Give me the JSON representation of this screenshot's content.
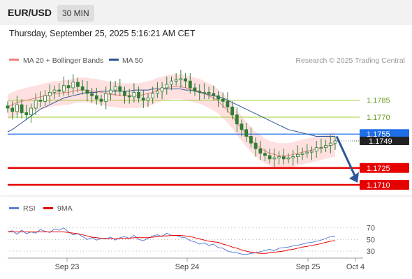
{
  "header": {
    "symbol": "EUR/USD",
    "timeframe": "30 MIN",
    "timestamp": "Thursday, September 25, 2025 5:16:21 AM CET"
  },
  "legend": {
    "bollinger": "MA 20 + Bollinger Bands",
    "ma50": "MA 50",
    "credit": "Research © 2025 Trading Central"
  },
  "rsi_legend": {
    "rsi": "RSI",
    "ma": "9MA"
  },
  "colors": {
    "bollinger": "#f08080",
    "ma50": "#2f5597",
    "band_fill": "#ffd6d6",
    "green_level": "#9acd32",
    "blue_level": "#1e6ee8",
    "red_level": "#e60000",
    "candle": "#2e7d32",
    "arrow": "#2f5597",
    "rsi_line": "#5b7fd6",
    "rsi_ma": "#e60000"
  },
  "chart_data": [
    {
      "type": "candlestick",
      "title": "EUR/USD",
      "timeframe": "30 MIN",
      "ylim": [
        1.1702,
        1.1812
      ],
      "x_ticks": [
        "Sep 23",
        "Sep 24",
        "Sep 25",
        "Oct 4"
      ],
      "levels": [
        {
          "value": 1.1785,
          "label": "1.1785",
          "kind": "resistance"
        },
        {
          "value": 1.177,
          "label": "1.1770",
          "kind": "resistance"
        },
        {
          "value": 1.1755,
          "label": "1.1755",
          "kind": "pivot"
        },
        {
          "value": 1.1725,
          "label": "1.1725",
          "kind": "support"
        },
        {
          "value": 1.171,
          "label": "1.1710",
          "kind": "support"
        }
      ],
      "last_price": {
        "value": 1.1749,
        "label": "1.1749"
      },
      "forecast": {
        "from": 1.1753,
        "to": 1.1712,
        "direction": "down"
      },
      "close_path": [
        1.1778,
        1.1775,
        1.1781,
        1.1774,
        1.1772,
        1.1778,
        1.1785,
        1.1784,
        1.1789,
        1.1792,
        1.1794,
        1.1793,
        1.1798,
        1.1796,
        1.1801,
        1.1797,
        1.1794,
        1.1791,
        1.1789,
        1.1786,
        1.1784,
        1.1791,
        1.1794,
        1.1797,
        1.1793,
        1.1789,
        1.1788,
        1.1792,
        1.1787,
        1.1785,
        1.1787,
        1.1791,
        1.1793,
        1.1796,
        1.1799,
        1.1802,
        1.1803,
        1.1804,
        1.1802,
        1.1796,
        1.1793,
        1.1792,
        1.1792,
        1.1791,
        1.1789,
        1.1786,
        1.1784,
        1.1779,
        1.1772,
        1.1764,
        1.1759,
        1.1753,
        1.1747,
        1.1742,
        1.1738,
        1.1736,
        1.1733,
        1.1734,
        1.1735,
        1.1733,
        1.1734,
        1.1735,
        1.1737,
        1.1738,
        1.1739,
        1.174,
        1.1743,
        1.1743,
        1.1745,
        1.1747,
        1.1749
      ],
      "ma20": [
        1.1779,
        1.1781,
        1.1783,
        1.1784,
        1.1785,
        1.1786,
        1.1787,
        1.1788,
        1.1789,
        1.179,
        1.1791,
        1.1791,
        1.1792,
        1.1792,
        1.1793,
        1.1794,
        1.1794,
        1.1794,
        1.1793,
        1.1793,
        1.1792,
        1.1791,
        1.179,
        1.179,
        1.1789,
        1.1789,
        1.1789,
        1.1789,
        1.1789,
        1.179,
        1.1791,
        1.1792,
        1.1794,
        1.1795,
        1.1796,
        1.1797,
        1.1797,
        1.1797,
        1.1796,
        1.1795,
        1.1794,
        1.1793,
        1.1791,
        1.1789,
        1.1787,
        1.1784,
        1.178,
        1.1776,
        1.1771,
        1.1765,
        1.176,
        1.1755,
        1.175,
        1.1746,
        1.1743,
        1.174,
        1.1738,
        1.1737,
        1.1736,
        1.1736,
        1.1736,
        1.1737,
        1.1738,
        1.1739,
        1.174,
        1.1741,
        1.1742,
        1.1743,
        1.1744,
        1.1745,
        1.1746
      ],
      "ma50": [
        1.1757,
        1.1759,
        1.1762,
        1.1765,
        1.1768,
        1.1771,
        1.1774,
        1.1777,
        1.1779,
        1.1781,
        1.1783,
        1.1785,
        1.1787,
        1.1788,
        1.1789,
        1.179,
        1.1791,
        1.1792,
        1.1792,
        1.1792,
        1.1793,
        1.1793,
        1.1793,
        1.1793,
        1.1793,
        1.1793,
        1.1793,
        1.1794,
        1.1794,
        1.1794,
        1.1794,
        1.1795,
        1.1795,
        1.1795,
        1.1795,
        1.1795,
        1.1795,
        1.1795,
        1.1794,
        1.1794,
        1.1793,
        1.1792,
        1.1791,
        1.179,
        1.1789,
        1.1788,
        1.1787,
        1.1785,
        1.1783,
        1.1781,
        1.1779,
        1.1777,
        1.1775,
        1.1773,
        1.1771,
        1.1769,
        1.1767,
        1.1765,
        1.1763,
        1.1761,
        1.1759,
        1.1758,
        1.1757,
        1.1756,
        1.1755,
        1.1754,
        1.1753,
        1.1753,
        1.1753,
        1.1753,
        1.1753
      ]
    },
    {
      "type": "line",
      "title": "RSI",
      "ylim": [
        18,
        78
      ],
      "y_ticks": [
        70,
        50,
        30
      ],
      "series": [
        {
          "name": "RSI",
          "values": [
            63,
            65,
            59,
            66,
            60,
            63,
            61,
            67,
            64,
            62,
            68,
            66,
            70,
            63,
            58,
            60,
            55,
            50,
            53,
            49,
            52,
            51,
            54,
            49,
            53,
            55,
            52,
            57,
            50,
            48,
            52,
            56,
            58,
            55,
            61,
            57,
            57,
            54,
            53,
            48,
            46,
            42,
            44,
            40,
            42,
            36,
            35,
            30,
            28,
            27,
            25,
            24,
            26,
            27,
            29,
            31,
            33,
            31,
            35,
            36,
            37,
            39,
            40,
            42,
            44,
            45,
            47,
            49,
            52,
            55,
            55
          ]
        },
        {
          "name": "9MA",
          "values": [
            63,
            63,
            63,
            63,
            63,
            63,
            63,
            63,
            63,
            63,
            63,
            63,
            63,
            62,
            61,
            60,
            58,
            56,
            54,
            53,
            52,
            52,
            51,
            51,
            52,
            52,
            52,
            53,
            53,
            53,
            53,
            54,
            55,
            56,
            56,
            57,
            57,
            57,
            56,
            55,
            53,
            51,
            49,
            47,
            46,
            45,
            42,
            40,
            37,
            35,
            32,
            30,
            28,
            27,
            26,
            26,
            27,
            28,
            29,
            30,
            32,
            33,
            35,
            37,
            38,
            40,
            41,
            43,
            45,
            47,
            48
          ]
        }
      ]
    }
  ]
}
